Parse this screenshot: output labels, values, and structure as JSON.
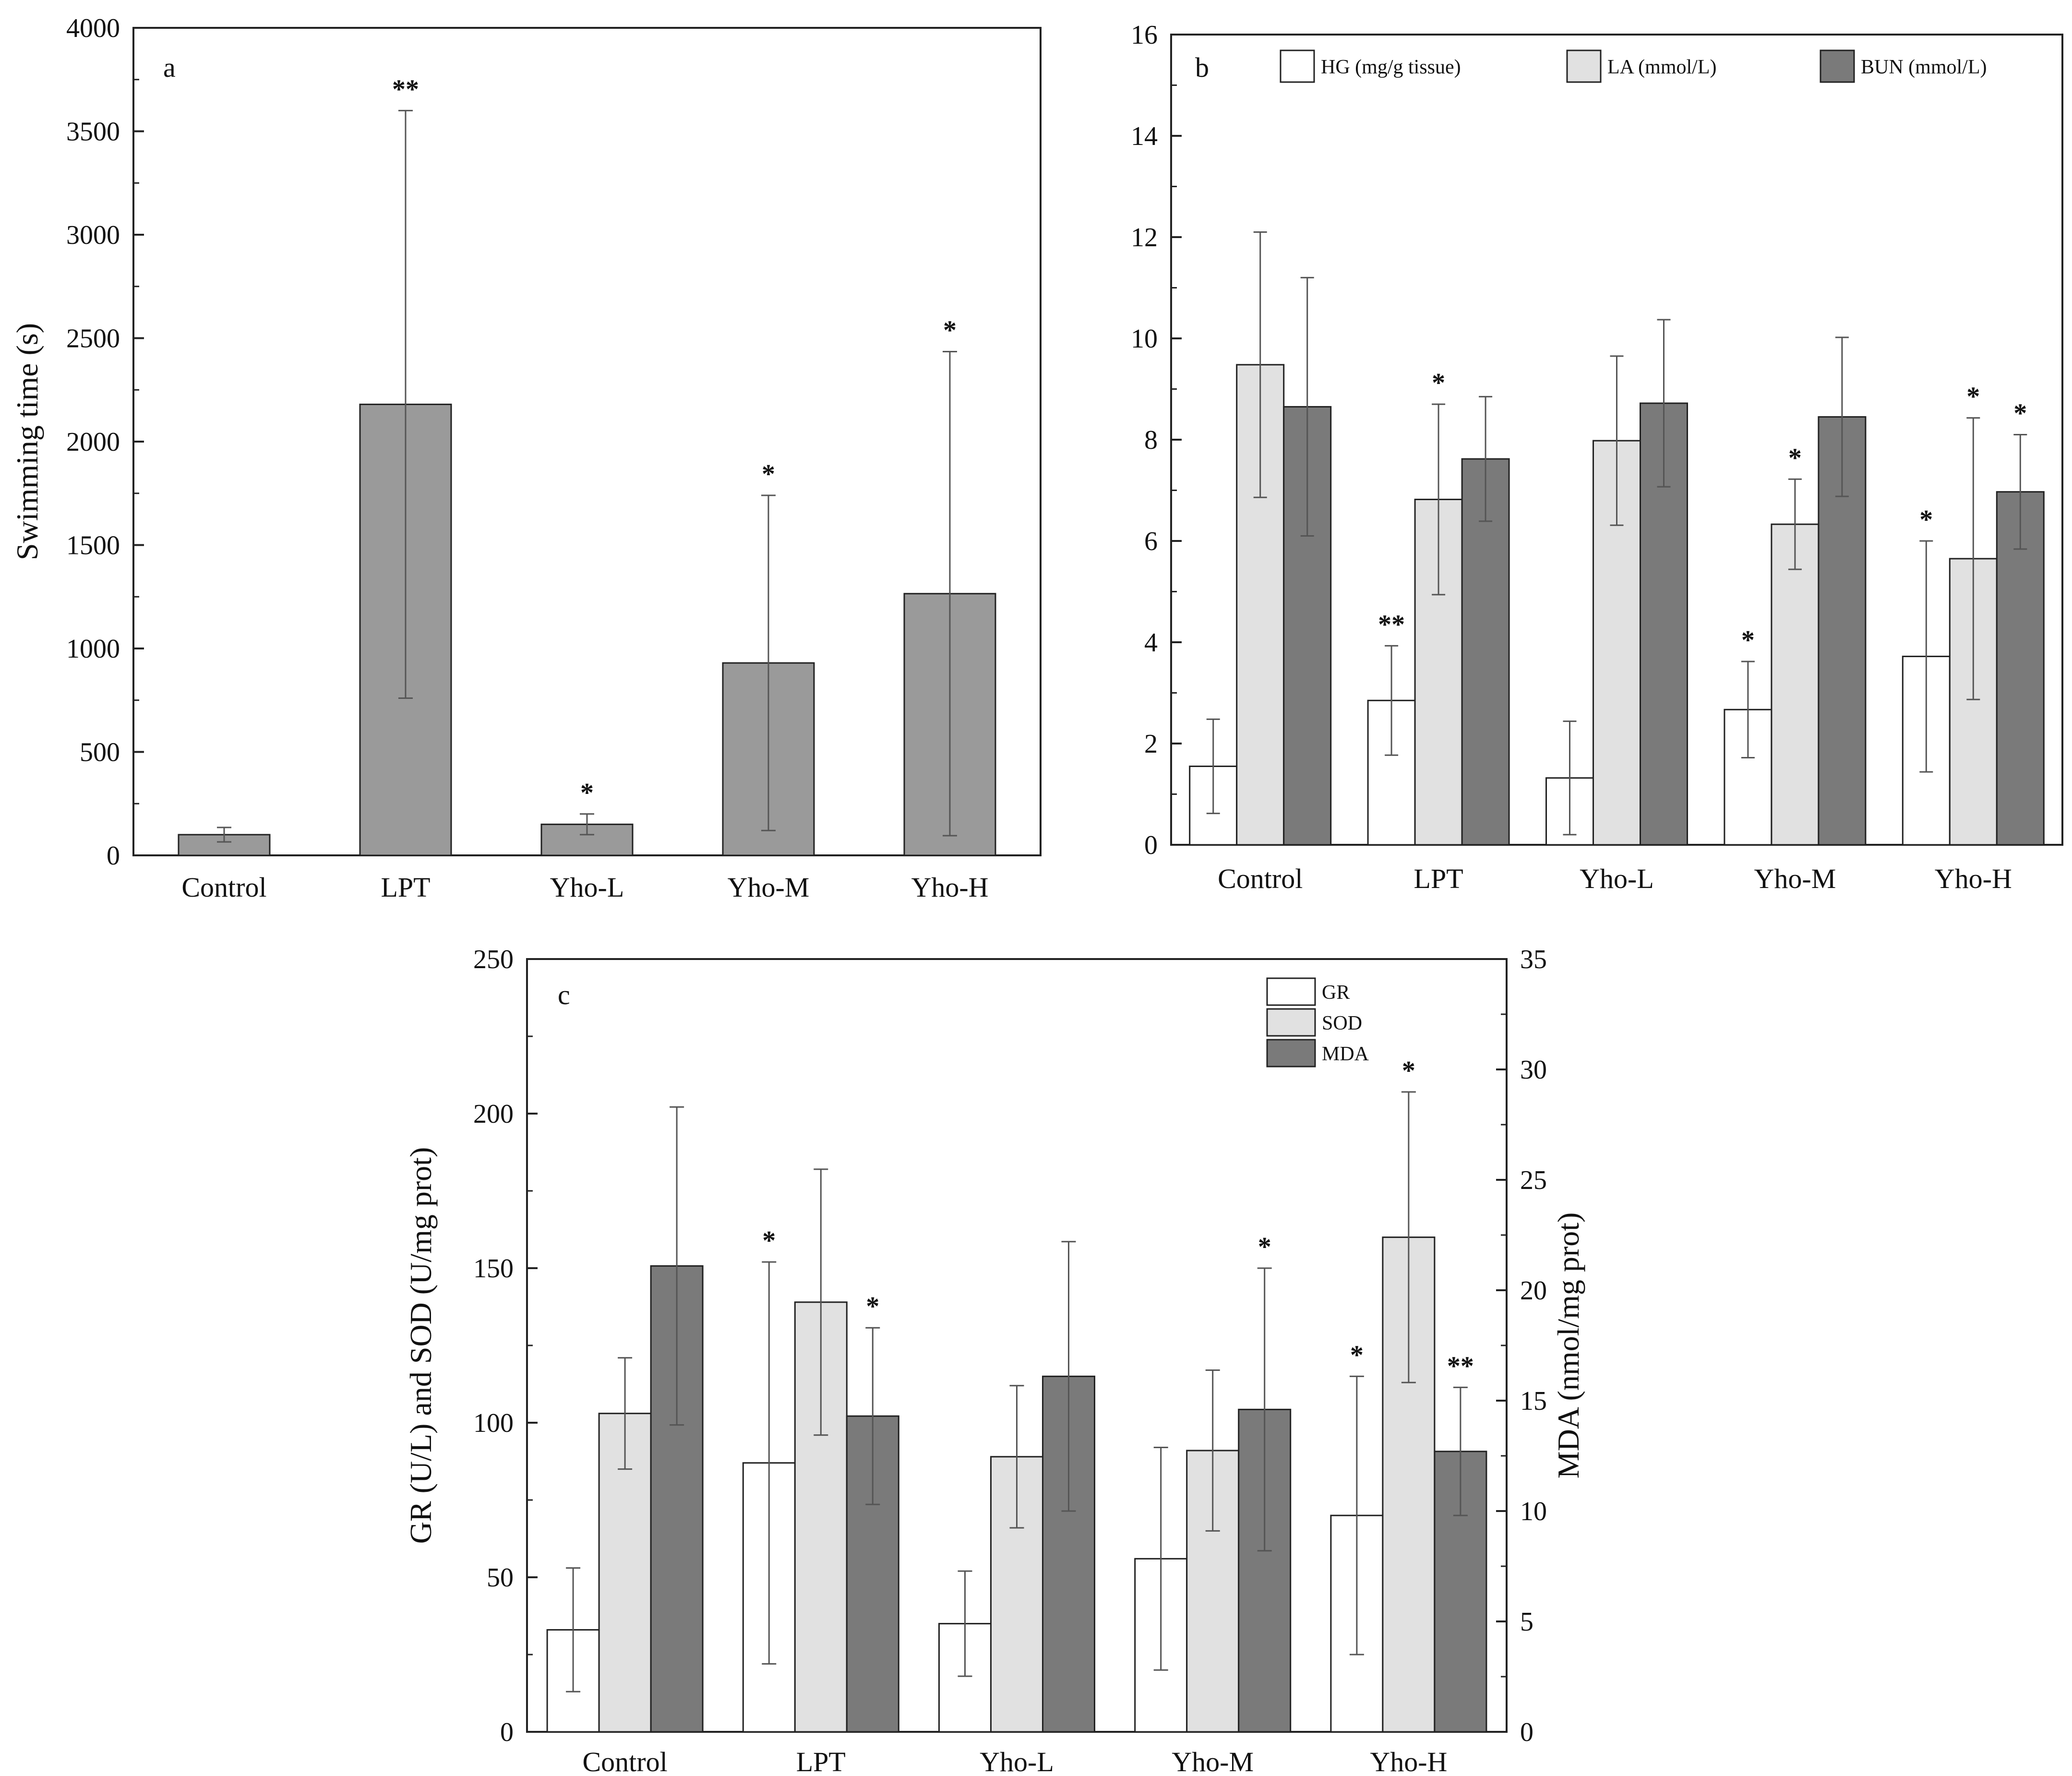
{
  "chart_data": [
    {
      "id": "a",
      "type": "bar",
      "panel_label": "a",
      "title": "",
      "xlabel": "",
      "ylabel": "Swimming time (s)",
      "categories": [
        "Control",
        "LPT",
        "Yho-L",
        "Yho-M",
        "Yho-H"
      ],
      "ylim": [
        0,
        4000
      ],
      "yticks": [
        0,
        500,
        1000,
        1500,
        2000,
        2500,
        3000,
        3500,
        4000
      ],
      "series": [
        {
          "name": "Swimming time",
          "color": "#9a9a9a",
          "values": [
            100,
            2180,
            150,
            930,
            1265
          ],
          "errors": [
            35,
            1420,
            50,
            810,
            1170
          ],
          "sig": [
            "",
            "**",
            "*",
            "*",
            "*"
          ]
        }
      ],
      "legend": false
    },
    {
      "id": "b",
      "type": "bar",
      "panel_label": "b",
      "title": "",
      "xlabel": "",
      "ylabel": "",
      "categories": [
        "Control",
        "LPT",
        "Yho-L",
        "Yho-M",
        "Yho-H"
      ],
      "ylim": [
        0,
        16
      ],
      "yticks": [
        0,
        2,
        4,
        6,
        8,
        10,
        12,
        14,
        16
      ],
      "series": [
        {
          "name": "HG (mg/g tissue)",
          "color": "#ffffff",
          "values": [
            1.55,
            2.85,
            1.32,
            2.67,
            3.72
          ],
          "errors": [
            0.93,
            1.08,
            1.12,
            0.95,
            2.28
          ],
          "sig": [
            "",
            "**",
            "",
            "*",
            "*"
          ]
        },
        {
          "name": "LA (mmol/L)",
          "color": "#e1e1e1",
          "values": [
            9.48,
            6.82,
            7.98,
            6.33,
            5.65
          ],
          "errors": [
            2.62,
            1.88,
            1.67,
            0.89,
            2.78
          ],
          "sig": [
            "",
            "*",
            "",
            "*",
            "*"
          ]
        },
        {
          "name": "BUN (mmol/L)",
          "color": "#7a7a7a",
          "values": [
            8.65,
            7.62,
            8.72,
            8.45,
            6.97
          ],
          "errors": [
            2.55,
            1.23,
            1.65,
            1.57,
            1.13
          ],
          "sig": [
            "",
            "",
            "",
            "",
            "*"
          ]
        }
      ],
      "legend": true,
      "legend_position": "top"
    },
    {
      "id": "c",
      "type": "bar",
      "panel_label": "c",
      "title": "",
      "xlabel": "",
      "ylabel": "GR (U/L) and SOD (U/mg prot)",
      "ylabel_right": "MDA (nmol/mg prot)",
      "categories": [
        "Control",
        "LPT",
        "Yho-L",
        "Yho-M",
        "Yho-H"
      ],
      "ylim": [
        0,
        250
      ],
      "yticks": [
        0,
        50,
        100,
        150,
        200,
        250
      ],
      "ylim_right": [
        0,
        35
      ],
      "yticks_right": [
        0,
        5,
        10,
        15,
        20,
        25,
        30,
        35
      ],
      "series": [
        {
          "name": "GR",
          "color": "#ffffff",
          "axis": "left",
          "values": [
            33,
            87,
            35,
            56,
            70
          ],
          "errors": [
            20,
            65,
            17,
            36,
            45
          ],
          "sig": [
            "",
            "*",
            "",
            "",
            "*"
          ]
        },
        {
          "name": "SOD",
          "color": "#e1e1e1",
          "axis": "left",
          "values": [
            103,
            139,
            89,
            91,
            160
          ],
          "errors": [
            18,
            43,
            23,
            26,
            47
          ],
          "sig": [
            "",
            "",
            "",
            "",
            "*"
          ]
        },
        {
          "name": "MDA",
          "color": "#7a7a7a",
          "axis": "right",
          "values": [
            21.1,
            14.3,
            16.1,
            14.6,
            12.7
          ],
          "errors": [
            7.2,
            4.0,
            6.1,
            6.4,
            2.9
          ],
          "sig": [
            "",
            "*",
            "",
            "*",
            "**"
          ]
        }
      ],
      "legend": true,
      "legend_position": "top-right"
    }
  ]
}
